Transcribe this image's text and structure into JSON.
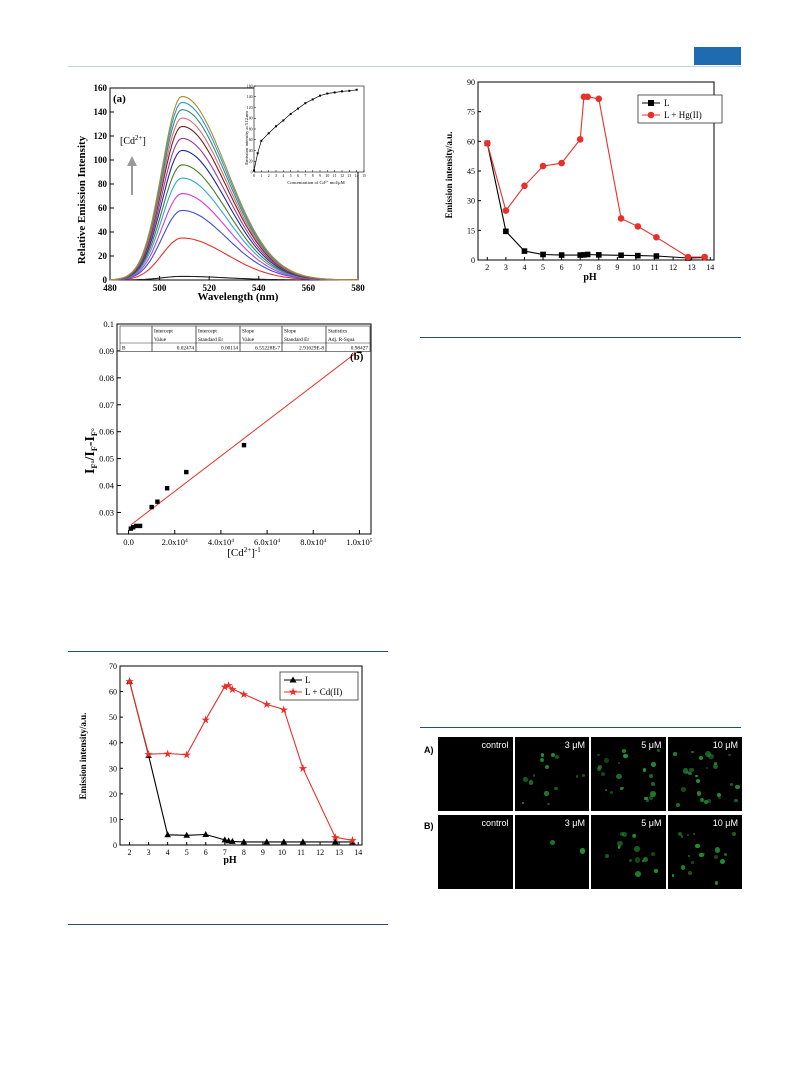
{
  "panel_a": {
    "label": "(a)",
    "xlabel": "Wavelength (nm)",
    "ylabel": "Relative Emission Intensity",
    "arrow_label": "[Cd",
    "arrow_label_sup": "2+",
    "arrow_label_end": "]",
    "inset_xlabel": "Concentration of Cd",
    "inset_xlabel_sup": "2+",
    "inset_xlabel_end": " mol/μM",
    "inset_ylabel": "Emission intensity at 512 nm",
    "colors": [
      "#202020",
      "#e8302a",
      "#3a4fd6",
      "#d43bd6",
      "#2fa8d8",
      "#4a7a2a",
      "#1e2a9e",
      "#9a3a9a",
      "#7a1e1e",
      "#d66e6e",
      "#3a8a7a",
      "#2a9ad6",
      "#b08a2a"
    ]
  },
  "panel_b": {
    "label": "(b)",
    "xlabel": "[Cd",
    "xlabel_sup": "2+",
    "xlabel_end": "]",
    "xlabel_exp": "-1",
    "ylabel_main": "I",
    "table": {
      "headers": [
        "",
        "Intercept",
        "Intercept",
        "Slope",
        "Slope",
        "Statistics"
      ],
      "subheaders": [
        "",
        "Value",
        "Standard Er",
        "Value",
        "Standard Er",
        "Adj. R-Squa"
      ],
      "row": [
        "B",
        "0.02474",
        "0.00114",
        "6.55228E-7",
        "2.91629E-8",
        "0.98427"
      ]
    }
  },
  "panel_cd": {
    "xlabel": "pH",
    "ylabel": "Emission intensity/a.u.",
    "legend": [
      "L",
      "L + Cd(II)"
    ]
  },
  "panel_hg": {
    "xlabel": "pH",
    "ylabel": "Emission intensity/a.u.",
    "legend": [
      "L",
      "L + Hg(II)"
    ]
  },
  "cells": {
    "row_labels": [
      "A)",
      "B)"
    ],
    "col_labels": [
      "control",
      "3 μM",
      "5 μM",
      "10 μM"
    ]
  },
  "chart_data": [
    {
      "type": "line",
      "x": [
        480,
        490,
        495,
        500,
        505,
        510,
        515,
        520,
        530,
        540,
        550,
        560,
        570,
        580
      ],
      "xlim": [
        480,
        580
      ],
      "ylim": [
        0,
        160
      ],
      "xticks": [
        480,
        500,
        520,
        540,
        560,
        580
      ],
      "yticks": [
        0,
        20,
        40,
        60,
        80,
        100,
        120,
        140,
        160
      ],
      "peaks": [
        3,
        35,
        58,
        72,
        85,
        96,
        108,
        118,
        128,
        135,
        142,
        148,
        153
      ],
      "inset": {
        "type": "line",
        "x": [
          0,
          0.5,
          1,
          2,
          3,
          4,
          5,
          6,
          7,
          8,
          9,
          10,
          11,
          12,
          13,
          14
        ],
        "y": [
          3,
          35,
          58,
          72,
          85,
          96,
          108,
          118,
          128,
          135,
          142,
          146,
          148,
          150,
          151,
          153
        ],
        "xlim": [
          0,
          15
        ],
        "ylim": [
          0,
          160
        ],
        "xticks": [
          0,
          1,
          2,
          3,
          4,
          5,
          6,
          7,
          8,
          9,
          10,
          11,
          12,
          13,
          14,
          15
        ],
        "yticks": [
          0,
          20,
          40,
          60,
          80,
          100,
          120,
          140,
          160
        ]
      }
    },
    {
      "type": "scatter",
      "x": [
        1000,
        2000,
        3300,
        5000,
        10000,
        12500,
        16700,
        25000,
        50000,
        100000
      ],
      "y": [
        0.024,
        0.0245,
        0.025,
        0.025,
        0.032,
        0.034,
        0.039,
        0.045,
        0.055,
        0.09
      ],
      "fit": {
        "intercept": 0.02474,
        "slope": 6.55228e-07
      },
      "xlim": [
        -5000,
        105000
      ],
      "ylim": [
        0.022,
        0.1
      ],
      "xtick_labels": [
        "0.0",
        "2.0x10",
        "4.0x10",
        "6.0x10",
        "8.0x10",
        "1.0x10"
      ],
      "xtick_exps": [
        "",
        "4",
        "4",
        "4",
        "4",
        "5"
      ],
      "xticks": [
        0,
        20000,
        40000,
        60000,
        80000,
        100000
      ],
      "yticks": [
        0.03,
        0.04,
        0.05,
        0.06,
        0.07,
        0.08,
        0.09,
        0.1
      ]
    },
    {
      "type": "line",
      "series": [
        {
          "name": "L",
          "x": [
            2,
            3,
            4,
            5,
            6,
            7,
            7.2,
            7.4,
            8,
            9.2,
            10.1,
            11.1,
            12.8,
            13.7
          ],
          "y": [
            64,
            35,
            4,
            3.8,
            4.1,
            2,
            1.6,
            1.4,
            1.2,
            1.2,
            1.2,
            1.2,
            1.2,
            1.2
          ]
        },
        {
          "name": "L + Cd(II)",
          "x": [
            2,
            3,
            4,
            5,
            6,
            7,
            7.2,
            7.4,
            8,
            9.2,
            10.1,
            11.1,
            12.8,
            13.7
          ],
          "y": [
            64,
            35.5,
            35.8,
            35.3,
            49,
            62,
            62.5,
            61,
            59,
            55,
            53,
            30,
            3,
            1.8
          ]
        }
      ],
      "xlim": [
        1.5,
        14.2
      ],
      "ylim": [
        0,
        70
      ],
      "xticks": [
        2,
        3,
        4,
        5,
        6,
        7,
        8,
        9,
        10,
        11,
        12,
        13,
        14
      ],
      "yticks": [
        0,
        10,
        20,
        30,
        40,
        50,
        60,
        70
      ]
    },
    {
      "type": "line",
      "series": [
        {
          "name": "L",
          "x": [
            2,
            3,
            4,
            5,
            6,
            7,
            7.2,
            7.4,
            8,
            9.2,
            10.1,
            11.1,
            12.8,
            13.7
          ],
          "y": [
            59,
            14.5,
            4.5,
            2.8,
            2.5,
            2.5,
            2.6,
            2.8,
            2.6,
            2.4,
            2.2,
            2,
            1,
            1.2
          ]
        },
        {
          "name": "L + Hg(II)",
          "x": [
            2,
            3,
            4,
            5,
            6,
            7,
            7.2,
            7.4,
            8,
            9.2,
            10.1,
            11.1,
            12.8,
            13.7
          ],
          "y": [
            59,
            25,
            37.5,
            47.5,
            49,
            61,
            82.5,
            82.5,
            81.5,
            21,
            17,
            11.5,
            1.5,
            1.5
          ]
        }
      ],
      "xlim": [
        1.5,
        14.2
      ],
      "ylim": [
        0,
        90
      ],
      "xticks": [
        2,
        3,
        4,
        5,
        6,
        7,
        8,
        9,
        10,
        11,
        12,
        13,
        14
      ],
      "yticks": [
        0,
        15,
        30,
        45,
        60,
        75,
        90
      ]
    }
  ]
}
